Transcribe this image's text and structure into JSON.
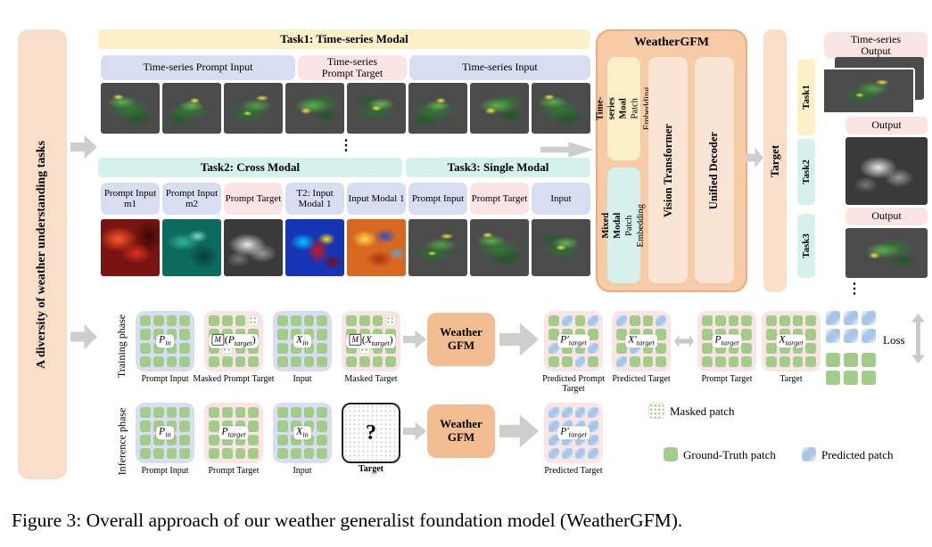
{
  "colors": {
    "ground_truth_patch": "#a3cc8b",
    "predicted_patch": "#a8c6e8",
    "task1_accent": "#fbf0c8",
    "task23_accent": "#d4f1eb",
    "prompt_box": "#d8def2",
    "target_box": "#fbe4e4",
    "model_box": "#f6cba5"
  },
  "left_bar": {
    "label": "A diversity of weather understanding tasks"
  },
  "top": {
    "dots": "⋮",
    "task1": {
      "header": "Task1: Time-series Modal",
      "prompt_input_label": "Time-series Prompt Input",
      "prompt_target_label": "Time-series Prompt Target",
      "input_label": "Time-series Input",
      "images": [
        "radar1",
        "radar2",
        "radar3",
        "radar4",
        "radar5",
        "radar2",
        "radar4",
        "radar1"
      ]
    },
    "task2": {
      "header": "Task2: Cross Modal",
      "labels": [
        "Prompt Input m1",
        "Prompt Input m2",
        "Prompt Target",
        "T2: Input Modal 1",
        "Input Modal 1"
      ],
      "images": [
        "heat-red",
        "teal-map",
        "gray-cloud",
        "jet-map",
        "warm-map"
      ]
    },
    "task3": {
      "header": "Task3: Single Modal",
      "labels": [
        "Prompt Input",
        "Prompt Target",
        "Input"
      ],
      "images": [
        "radar3",
        "radar1",
        "radar5"
      ]
    }
  },
  "gfm": {
    "title": "WeatherGFM",
    "embed1_bold": "Time-series Moal",
    "embed1_rest": " Patch Embedding",
    "embed2_bold": "Mixed Modal",
    "embed2_rest": " Patch Embedding",
    "vit": "Vision Transformer",
    "decoder": "Unified Decoder"
  },
  "target_bar": {
    "label": "Target"
  },
  "outputs": {
    "ts_output_label": "Time-series Output",
    "output_label": "Output",
    "task1_label": "Task1",
    "task2_label": "Task2",
    "task3_label": "Task3",
    "task1_images": [
      "radar2",
      "radar3"
    ],
    "task2_image": "gray-cloud",
    "task3_image": "radar4",
    "dots": "⋮"
  },
  "training": {
    "row_label": "Training phase",
    "in_groups": [
      {
        "sym": "P",
        "sub": "in",
        "label": "Prompt Input",
        "pattern": "gggggggggggggggg"
      },
      {
        "m": "M",
        "open": "(",
        "sym": "P",
        "sub": "target",
        "close": ")",
        "label": "Masked Prompt Target",
        "pattern": "gggmgggggmgggggg"
      },
      {
        "sym": "X",
        "sub": "in",
        "label": "Input",
        "pattern": "gggggggggggggggg"
      },
      {
        "m": "M",
        "open": "(",
        "sym": "X",
        "sub": "target",
        "close": ")",
        "label": "Masked Target",
        "pattern": "gggmgggggmgggggg"
      }
    ],
    "model": {
      "line1": "Weather",
      "line2": "GFM"
    },
    "out_groups": [
      {
        "sym": "P′",
        "sub": "target",
        "label": "Predicted Prompt Target",
        "pattern": "gbgbggggbggbggbg"
      },
      {
        "sym": "X′",
        "sub": "target",
        "label": "Predicted Target",
        "pattern": "bggbgggggbggbggg"
      },
      {
        "sym": "P",
        "sub": "target",
        "label": "Prompt Target",
        "pattern": "gggggggggggggggg"
      },
      {
        "sym": "X",
        "sub": "target",
        "label": "Target",
        "pattern": "gggggggggggggggg"
      }
    ],
    "loss": {
      "label": "Loss",
      "pred_pattern": "bbbbbb",
      "gt_pattern": "gggggg"
    }
  },
  "inference": {
    "row_label": "Inference phase",
    "in_groups": [
      {
        "sym": "P",
        "sub": "in",
        "label": "Prompt Input",
        "pattern": "gggggggggggggggg"
      },
      {
        "sym": "P",
        "sub": "target",
        "label": "Prompt Target",
        "pattern": "gggggggggggggggg"
      },
      {
        "sym": "X",
        "sub": "in",
        "label": "Input",
        "pattern": "gggggggggggggggg"
      },
      {
        "question": "?",
        "label": "Target"
      }
    ],
    "model": {
      "line1": "Weather",
      "line2": "GFM"
    },
    "out_group": {
      "sym": "P′",
      "sub": "target",
      "label": "Predicted Target",
      "pattern": "bbbbbbbbbbbbbbbb"
    }
  },
  "legend": {
    "masked": "Masked patch",
    "ground_truth": "Ground-Truth patch",
    "predicted": "Predicted patch"
  },
  "caption": "Figure 3: Overall approach of our weather generalist foundation model (WeatherGFM)."
}
